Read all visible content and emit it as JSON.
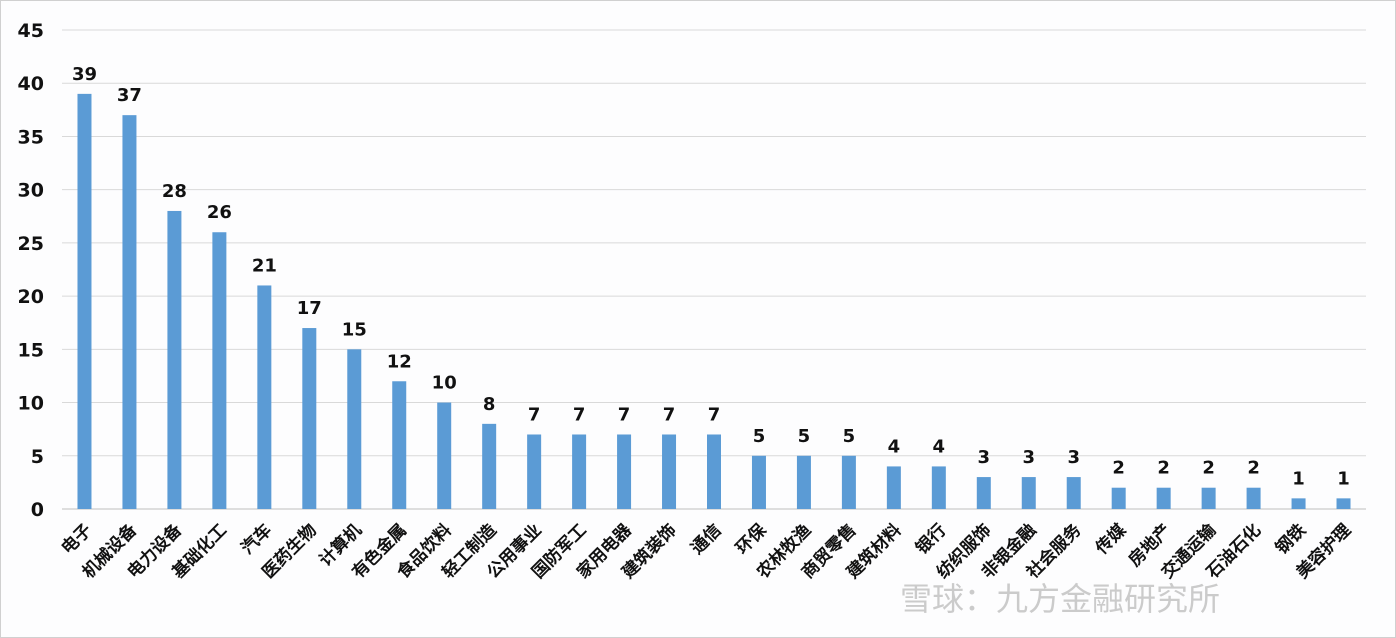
{
  "chart_data": {
    "type": "bar",
    "categories": [
      "电子",
      "机械设备",
      "电力设备",
      "基础化工",
      "汽车",
      "医药生物",
      "计算机",
      "有色金属",
      "食品饮料",
      "轻工制造",
      "公用事业",
      "国防军工",
      "家用电器",
      "建筑装饰",
      "通信",
      "环保",
      "农林牧渔",
      "商贸零售",
      "建筑材料",
      "银行",
      "纺织服饰",
      "非银金融",
      "社会服务",
      "传媒",
      "房地产",
      "交通运输",
      "石油石化",
      "钢铁",
      "美容护理"
    ],
    "values": [
      39,
      37,
      28,
      26,
      21,
      17,
      15,
      12,
      10,
      8,
      7,
      7,
      7,
      7,
      7,
      5,
      5,
      5,
      4,
      4,
      3,
      3,
      3,
      2,
      2,
      2,
      2,
      1,
      1
    ],
    "title": "",
    "xlabel": "",
    "ylabel": "",
    "ylim": [
      0,
      45
    ],
    "yticks": [
      0,
      5,
      10,
      15,
      20,
      25,
      30,
      35,
      40,
      45
    ],
    "grid": true,
    "data_labels": true,
    "bar_color": "#5b9bd5"
  },
  "watermark": "雪球：九方金融研究所"
}
